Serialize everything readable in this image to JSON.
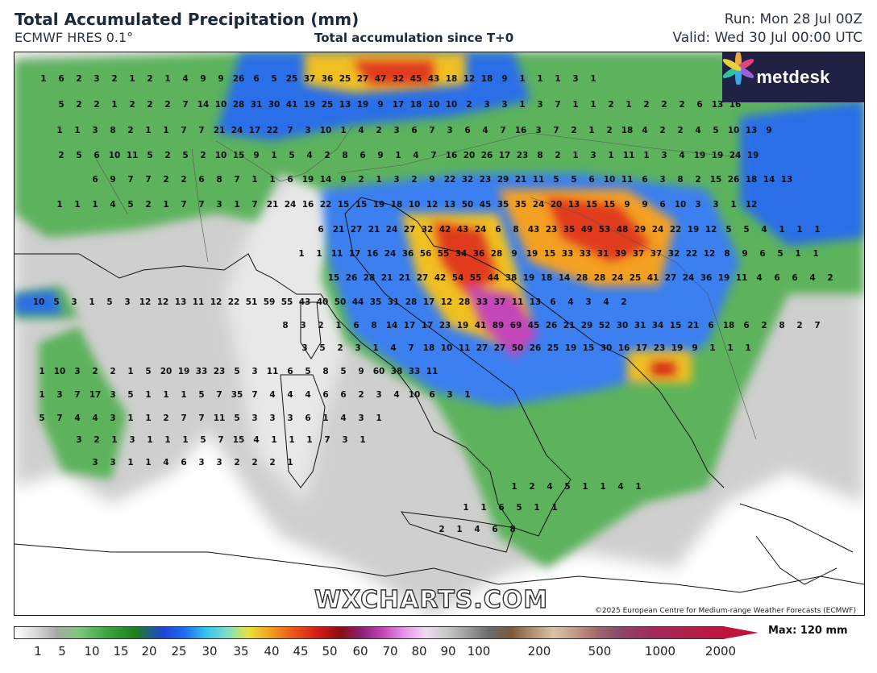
{
  "header": {
    "title": "Total Accumulated Precipitation (mm)",
    "model": "ECMWF HRES 0.1°",
    "subtitle": "Total accumulation since T+0",
    "run": "Run: Mon 28 Jul 00Z",
    "valid": "Valid: Wed 30 Jul 00:00 UTC"
  },
  "logo": {
    "text": "metdesk",
    "icon": "flower-icon"
  },
  "watermark": "WXCHARTS.COM",
  "copyright": "©2025 European Centre for Medium-range Weather Forecasts (ECMWF)",
  "legend": {
    "ticks": [
      "1",
      "5",
      "10",
      "15",
      "20",
      "25",
      "30",
      "35",
      "40",
      "45",
      "50",
      "60",
      "70",
      "80",
      "90",
      "100",
      "200",
      "500",
      "1000",
      "2000"
    ],
    "max_label": "Max: 120 mm"
  },
  "map_values": {
    "rows": [
      [
        "1",
        "6",
        "2",
        "3",
        "2",
        "1",
        "2",
        "1",
        "4",
        "9",
        "9",
        "26",
        "6",
        "5",
        "25",
        "37",
        "36",
        "25",
        "27",
        "47",
        "32",
        "45",
        "43",
        "18",
        "12",
        "18",
        "9",
        "1",
        "1",
        "1",
        "3",
        "1"
      ],
      [
        "5",
        "2",
        "2",
        "1",
        "2",
        "2",
        "2",
        "7",
        "14",
        "10",
        "28",
        "31",
        "30",
        "41",
        "19",
        "25",
        "13",
        "19",
        "9",
        "17",
        "18",
        "10",
        "10",
        "2",
        "3",
        "3",
        "1",
        "3",
        "7",
        "1",
        "1",
        "2",
        "1",
        "2",
        "2",
        "2",
        "6",
        "13",
        "16"
      ],
      [
        "1",
        "1",
        "3",
        "8",
        "2",
        "1",
        "1",
        "7",
        "7",
        "21",
        "24",
        "17",
        "22",
        "7",
        "3",
        "10",
        "1",
        "4",
        "2",
        "3",
        "6",
        "7",
        "3",
        "6",
        "4",
        "7",
        "16",
        "3",
        "7",
        "2",
        "1",
        "2",
        "18",
        "4",
        "2",
        "2",
        "4",
        "5",
        "10",
        "13",
        "9"
      ],
      [
        "2",
        "5",
        "6",
        "10",
        "11",
        "5",
        "2",
        "5",
        "2",
        "10",
        "15",
        "9",
        "1",
        "5",
        "4",
        "2",
        "8",
        "6",
        "9",
        "1",
        "4",
        "7",
        "16",
        "20",
        "26",
        "17",
        "23",
        "8",
        "2",
        "1",
        "3",
        "1",
        "11",
        "1",
        "3",
        "4",
        "19",
        "19",
        "24",
        "19"
      ],
      [
        "6",
        "9",
        "7",
        "7",
        "2",
        "2",
        "6",
        "8",
        "7",
        "1",
        "1",
        "6",
        "19",
        "14",
        "9",
        "2",
        "1",
        "3",
        "2",
        "9",
        "22",
        "32",
        "23",
        "29",
        "21",
        "11",
        "5",
        "5",
        "6",
        "10",
        "11",
        "6",
        "3",
        "8",
        "2",
        "15",
        "26",
        "18",
        "14",
        "13"
      ],
      [
        "1",
        "1",
        "1",
        "4",
        "5",
        "2",
        "1",
        "7",
        "7",
        "3",
        "1",
        "7",
        "21",
        "24",
        "16",
        "22",
        "15",
        "15",
        "19",
        "18",
        "10",
        "12",
        "13",
        "50",
        "45",
        "35",
        "35",
        "24",
        "20",
        "13",
        "15",
        "15",
        "9",
        "9",
        "6",
        "10",
        "3",
        "3",
        "1",
        "12"
      ],
      [
        "6",
        "21",
        "27",
        "21",
        "24",
        "27",
        "32",
        "42",
        "43",
        "24",
        "6",
        "8",
        "43",
        "23",
        "35",
        "49",
        "53",
        "48",
        "29",
        "24",
        "22",
        "19",
        "12",
        "5",
        "5",
        "4",
        "1",
        "1",
        "1"
      ],
      [
        "1",
        "1",
        "11",
        "17",
        "16",
        "24",
        "36",
        "56",
        "55",
        "34",
        "36",
        "28",
        "9",
        "19",
        "15",
        "33",
        "33",
        "31",
        "39",
        "37",
        "37",
        "32",
        "22",
        "12",
        "8",
        "9",
        "6",
        "5",
        "1",
        "1"
      ],
      [
        "15",
        "26",
        "28",
        "21",
        "21",
        "27",
        "42",
        "54",
        "55",
        "44",
        "38",
        "19",
        "18",
        "14",
        "28",
        "28",
        "24",
        "25",
        "41",
        "27",
        "24",
        "36",
        "19",
        "11",
        "4",
        "6",
        "6",
        "4",
        "2"
      ],
      [
        "10",
        "5",
        "3",
        "1",
        "5",
        "3",
        "12",
        "12",
        "13",
        "11",
        "12",
        "22",
        "51",
        "59",
        "55",
        "43",
        "40",
        "50",
        "44",
        "35",
        "31",
        "28",
        "17",
        "12",
        "28",
        "33",
        "37",
        "11",
        "13",
        "6",
        "4",
        "3",
        "4",
        "2"
      ],
      [
        "8",
        "3",
        "2",
        "1",
        "6",
        "8",
        "14",
        "17",
        "17",
        "23",
        "19",
        "41",
        "89",
        "69",
        "45",
        "26",
        "21",
        "29",
        "52",
        "30",
        "31",
        "34",
        "15",
        "21",
        "6",
        "18",
        "6",
        "2",
        "8",
        "2",
        "7"
      ],
      [
        "3",
        "5",
        "2",
        "3",
        "1",
        "4",
        "7",
        "18",
        "10",
        "11",
        "27",
        "27",
        "50",
        "26",
        "25",
        "19",
        "15",
        "30",
        "16",
        "17",
        "23",
        "19",
        "9",
        "1",
        "1",
        "1"
      ],
      [
        "1",
        "10",
        "3",
        "2",
        "2",
        "1",
        "5",
        "20",
        "19",
        "33",
        "23",
        "5",
        "3",
        "11",
        "6",
        "5",
        "8",
        "5",
        "9",
        "60",
        "38",
        "33",
        "11"
      ],
      [
        "1",
        "3",
        "7",
        "17",
        "3",
        "5",
        "1",
        "1",
        "1",
        "5",
        "7",
        "35",
        "7",
        "4",
        "4",
        "4",
        "6",
        "6",
        "2",
        "3",
        "4",
        "10",
        "6",
        "3",
        "1"
      ],
      [
        "5",
        "7",
        "4",
        "4",
        "3",
        "1",
        "1",
        "2",
        "7",
        "7",
        "11",
        "5",
        "3",
        "3",
        "3",
        "6",
        "1",
        "4",
        "3",
        "1"
      ],
      [
        "3",
        "2",
        "1",
        "3",
        "1",
        "1",
        "1",
        "5",
        "7",
        "15",
        "4",
        "1",
        "1",
        "1",
        "7",
        "3",
        "1"
      ],
      [
        "3",
        "3",
        "1",
        "1",
        "4",
        "6",
        "3",
        "3",
        "2",
        "2",
        "2",
        "1"
      ],
      [
        "1",
        "2",
        "4",
        "5",
        "1",
        "1",
        "4",
        "1"
      ],
      [
        "1",
        "1",
        "6",
        "5",
        "1",
        "1"
      ],
      [
        "2",
        "1",
        "4",
        "6",
        "8"
      ]
    ]
  }
}
